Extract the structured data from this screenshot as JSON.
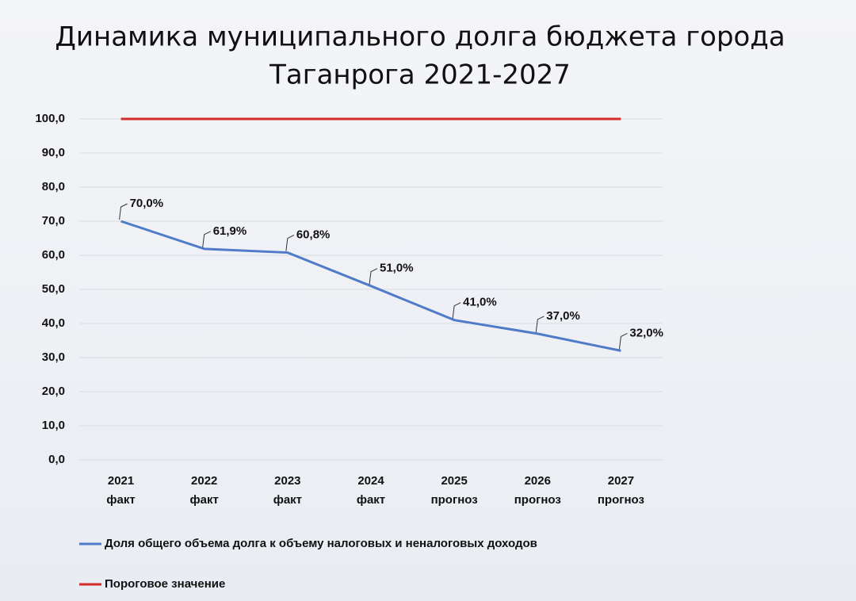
{
  "chart_data": {
    "type": "line",
    "title": [
      "Динамика муниципального долга бюджета города",
      "Таганрога 2021-2027"
    ],
    "categories": [
      [
        "2021",
        "факт"
      ],
      [
        "2022",
        "факт"
      ],
      [
        "2023",
        "факт"
      ],
      [
        "2024",
        "факт"
      ],
      [
        "2025",
        "прогноз"
      ],
      [
        "2026",
        "прогноз"
      ],
      [
        "2027",
        "прогноз"
      ]
    ],
    "series": [
      {
        "name": "Доля общего объема долга к объему налоговых и неналоговых доходов",
        "color": "#4f7bc8",
        "values": [
          70,
          61.9,
          60.8,
          51,
          41,
          37,
          32
        ],
        "value_labels": [
          "70,0%",
          "61,9%",
          "60,8%",
          "51,0%",
          "41,0%",
          "37,0%",
          "32,0%"
        ]
      },
      {
        "name": "Пороговое значение",
        "color": "#d42a2a",
        "values": [
          100,
          100,
          100,
          100,
          100,
          100,
          100
        ]
      }
    ],
    "ylim": [
      0,
      100
    ],
    "yticks": [
      {
        "value": 0,
        "label": "0,0"
      },
      {
        "value": 10,
        "label": "10,0"
      },
      {
        "value": 20,
        "label": "20,0"
      },
      {
        "value": 30,
        "label": "30,0"
      },
      {
        "value": 40,
        "label": "40,0"
      },
      {
        "value": 50,
        "label": "50,0"
      },
      {
        "value": 60,
        "label": "60,0"
      },
      {
        "value": 70,
        "label": "70,0"
      },
      {
        "value": 80,
        "label": "80,0"
      },
      {
        "value": 90,
        "label": "90,0"
      },
      {
        "value": 100,
        "label": "100,0"
      }
    ],
    "grid": true
  }
}
